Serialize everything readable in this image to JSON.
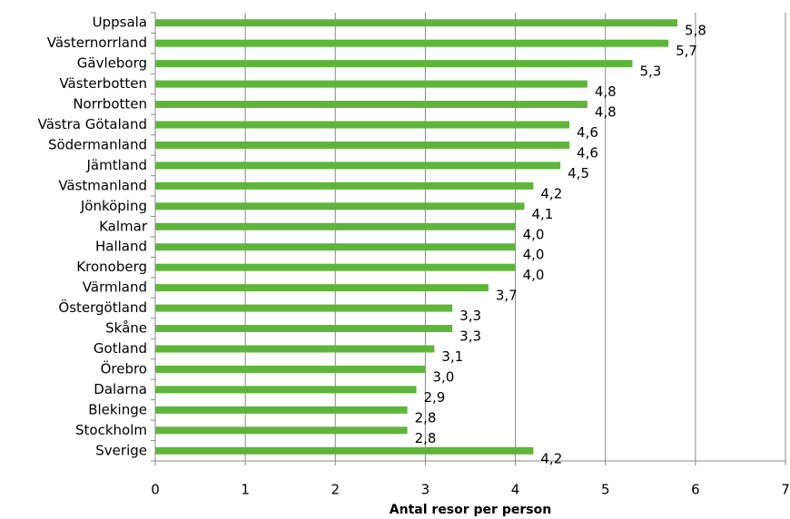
{
  "chart_data": {
    "type": "hbar",
    "categories": [
      "Uppsala",
      "Västernorrland",
      "Gävleborg",
      "Västerbotten",
      "Norrbotten",
      "Västra Götaland",
      "Södermanland",
      "Jämtland",
      "Västmanland",
      "Jönköping",
      "Kalmar",
      "Halland",
      "Kronoberg",
      "Värmland",
      "Östergötland",
      "Skåne",
      "Gotland",
      "Örebro",
      "Dalarna",
      "Blekinge",
      "Stockholm",
      "Sverige"
    ],
    "values": [
      5.8,
      5.7,
      5.3,
      4.8,
      4.8,
      4.6,
      4.6,
      4.5,
      4.2,
      4.1,
      4.0,
      4.0,
      4.0,
      3.7,
      3.3,
      3.3,
      3.1,
      3.0,
      2.9,
      2.8,
      2.8,
      4.2
    ],
    "value_labels": [
      "5,8",
      "5,7",
      "5,3",
      "4,8",
      "4,8",
      "4,6",
      "4,6",
      "4,5",
      "4,2",
      "4,1",
      "4,0",
      "4,0",
      "4,0",
      "3,7",
      "3,3",
      "3,3",
      "3,1",
      "3,0",
      "2,9",
      "2,8",
      "2,8",
      "4,2"
    ],
    "color": "#5fb539",
    "xlabel": "Antal resor per person",
    "xlim": [
      0,
      7
    ],
    "xticks": [
      0,
      1,
      2,
      3,
      4,
      5,
      6,
      7
    ],
    "grid": true
  }
}
